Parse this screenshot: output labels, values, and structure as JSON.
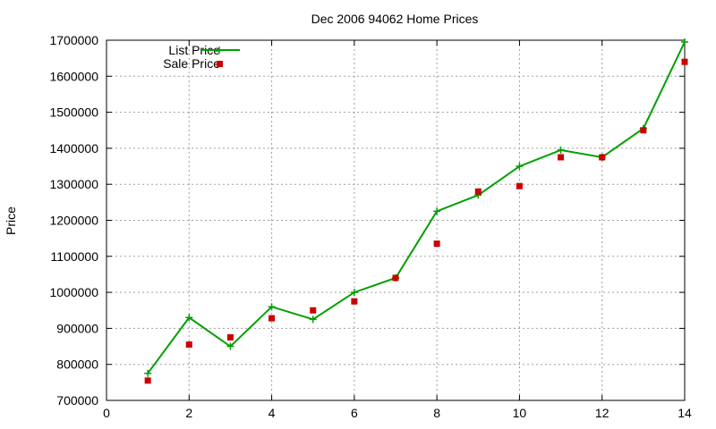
{
  "chart_data": {
    "type": "line",
    "title": "Dec 2006 94062 Home Prices",
    "xlabel": "",
    "ylabel": "Price",
    "xlim": [
      0,
      14
    ],
    "ylim": [
      700000,
      1700000
    ],
    "x_ticks": [
      0,
      2,
      4,
      6,
      8,
      10,
      12,
      14
    ],
    "y_ticks": [
      700000,
      800000,
      900000,
      1000000,
      1100000,
      1200000,
      1300000,
      1400000,
      1500000,
      1600000,
      1700000
    ],
    "grid": true,
    "legend_position": "top-left",
    "series": [
      {
        "name": "List Price",
        "style": "line+cross",
        "color": "#00a000",
        "x": [
          1,
          2,
          3,
          4,
          5,
          6,
          7,
          8,
          9,
          10,
          11,
          12,
          13,
          14
        ],
        "values": [
          775000,
          930000,
          850000,
          960000,
          925000,
          1000000,
          1040000,
          1225000,
          1270000,
          1350000,
          1395000,
          1375000,
          1455000,
          1695000
        ]
      },
      {
        "name": "Sale Price",
        "style": "square-points",
        "color": "#cc0000",
        "x": [
          1,
          2,
          3,
          4,
          5,
          6,
          7,
          8,
          9,
          10,
          11,
          12,
          13,
          14
        ],
        "values": [
          755000,
          855000,
          875000,
          928000,
          950000,
          975000,
          1040000,
          1135000,
          1280000,
          1295000,
          1375000,
          1375000,
          1450000,
          1640000
        ]
      }
    ]
  }
}
